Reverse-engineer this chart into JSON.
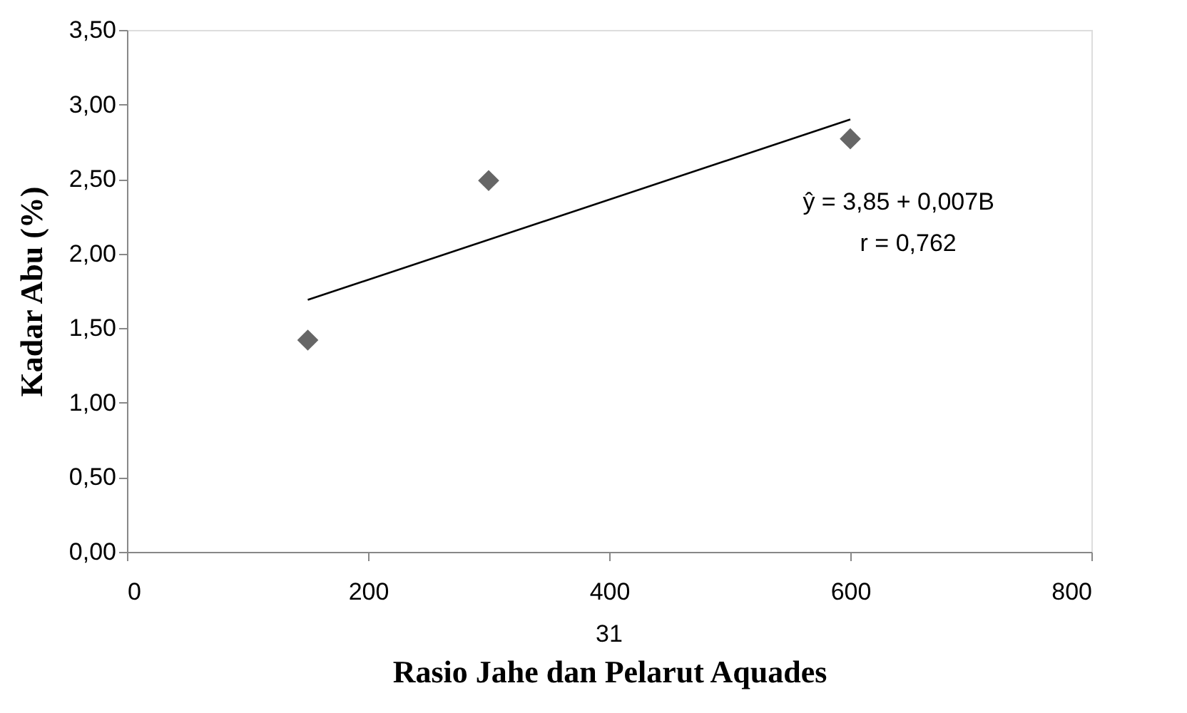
{
  "chart_data": {
    "type": "scatter",
    "xlabel": "Rasio Jahe dan Pelarut Aquades",
    "ylabel": "Kadar Abu (%)",
    "series": [
      {
        "color": "#666666",
        "marker": "diamond",
        "x": [
          150,
          300,
          600
        ],
        "values": [
          1.42,
          2.49,
          2.77
        ]
      },
      {
        "type": "line",
        "color": "#000000",
        "x": [
          150,
          600
        ],
        "values": [
          1.69,
          2.9
        ]
      }
    ],
    "xlim": [
      0,
      800
    ],
    "xticks": [
      0,
      200,
      400,
      600,
      800
    ],
    "ylim": [
      0,
      3.5
    ],
    "yticks": [
      {
        "value": 0,
        "label": "0,00"
      },
      {
        "value": 0.5,
        "label": "0,50"
      },
      {
        "value": 1,
        "label": "1,00"
      },
      {
        "value": 1.5,
        "label": "1,50"
      },
      {
        "value": 2,
        "label": "2,00"
      },
      {
        "value": 2.5,
        "label": "2,50"
      },
      {
        "value": 3,
        "label": "3,00"
      },
      {
        "value": 3.5,
        "label": "3,50"
      }
    ],
    "grid": false,
    "annotations": [
      "ŷ =  3,85 + 0,007B",
      "r = 0,762",
      "31"
    ]
  }
}
